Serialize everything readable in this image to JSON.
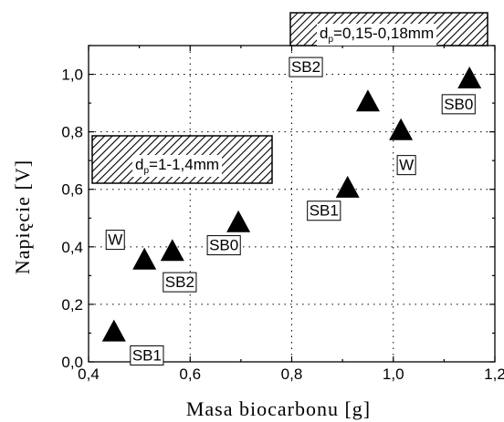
{
  "chart_data": {
    "type": "scatter",
    "xlabel": "Masa biocarbonu [g]",
    "ylabel": "Napięcie [V]",
    "xlim": [
      0.4,
      1.2
    ],
    "ylim": [
      0.0,
      1.1
    ],
    "x_ticks": [
      "0,4",
      "0,6",
      "0,8",
      "1,0",
      "1,2"
    ],
    "y_ticks": [
      "0,0",
      "0,2",
      "0,4",
      "0,6",
      "0,8",
      "1,0"
    ],
    "grid": true,
    "marker": "filled-triangle",
    "points": [
      {
        "x": 0.45,
        "y": 0.1,
        "label": "SB1"
      },
      {
        "x": 0.51,
        "y": 0.35,
        "label": "W"
      },
      {
        "x": 0.565,
        "y": 0.38,
        "label": "SB2"
      },
      {
        "x": 0.695,
        "y": 0.48,
        "label": "SB0"
      },
      {
        "x": 0.91,
        "y": 0.6,
        "label": "SB1"
      },
      {
        "x": 0.95,
        "y": 0.9,
        "label": "SB2"
      },
      {
        "x": 1.015,
        "y": 0.8,
        "label": "W"
      },
      {
        "x": 1.15,
        "y": 0.98,
        "label": "SB0"
      }
    ],
    "annotations": [
      {
        "prefix": "d",
        "sub": "p",
        "text": "=1-1,4mm",
        "style": "hatched-box"
      },
      {
        "prefix": "d",
        "sub": "p",
        "text": "=0,15-0,18mm",
        "style": "hatched-box"
      }
    ]
  }
}
